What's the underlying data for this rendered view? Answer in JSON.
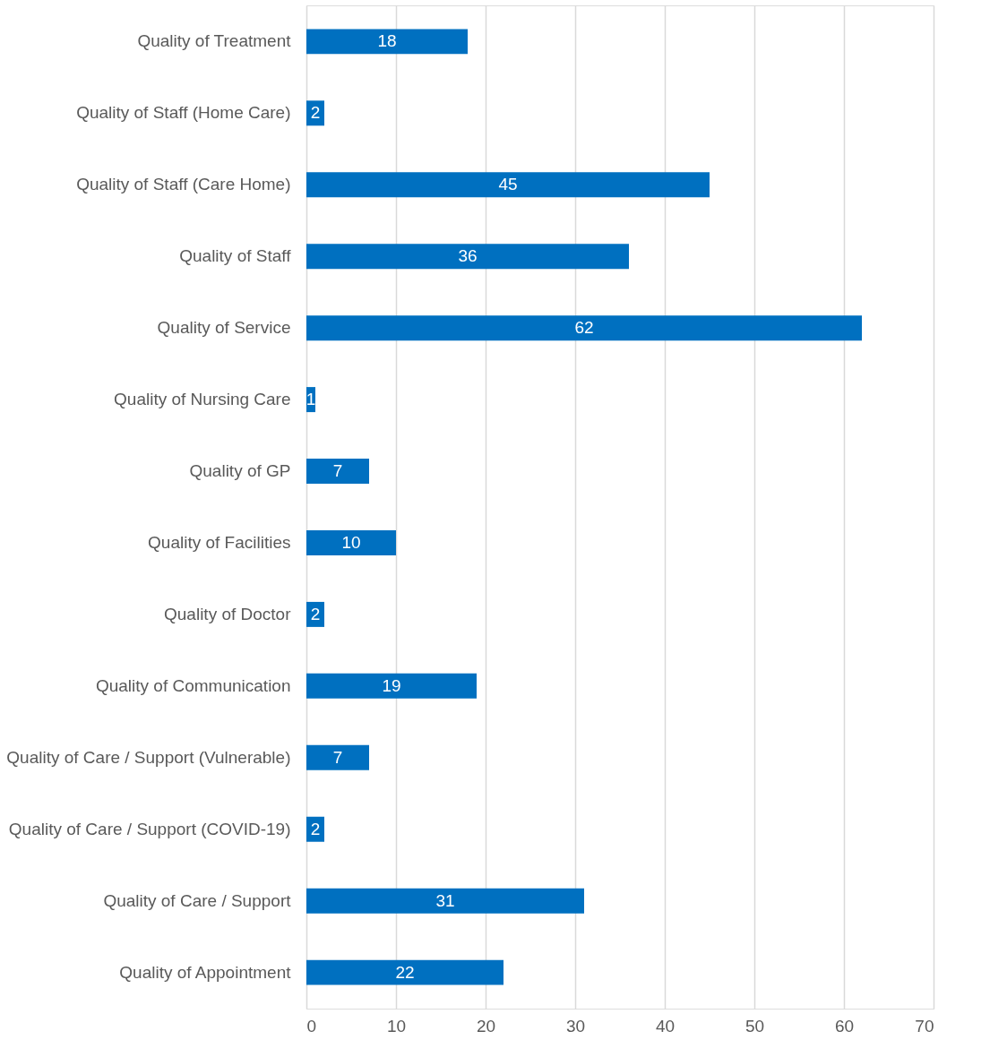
{
  "chart_data": {
    "type": "bar",
    "orientation": "horizontal",
    "categories": [
      "Quality of Treatment",
      "Quality of Staff (Home Care)",
      "Quality of Staff (Care Home)",
      "Quality of Staff",
      "Quality of Service",
      "Quality of Nursing Care",
      "Quality of GP",
      "Quality of Facilities",
      "Quality of Doctor",
      "Quality of Communication",
      "Quality of Care / Support (Vulnerable)",
      "Quality of Care / Support (COVID-19)",
      "Quality of Care / Support",
      "Quality of Appointment"
    ],
    "values": [
      18,
      2,
      45,
      36,
      62,
      1,
      7,
      10,
      2,
      19,
      7,
      2,
      31,
      22
    ],
    "color": "#0070c0",
    "xlim": [
      0,
      70
    ],
    "xticks": [
      0,
      10,
      20,
      30,
      40,
      50,
      60,
      70
    ],
    "grid": "x",
    "data_labels": true
  }
}
